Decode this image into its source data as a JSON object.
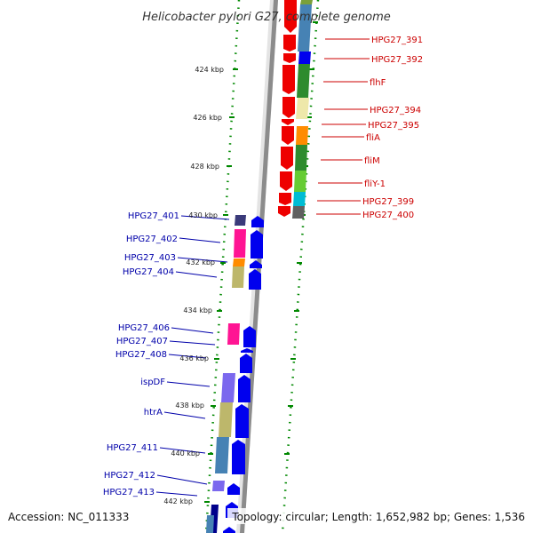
{
  "title": "Helicobacter pylori G27, complete genome",
  "accession": "Accession: NC_011333",
  "topology": "Topology: circular; Length: 1,652,982 bp; Genes: 1,536",
  "colors": {
    "left_label": "#0000aa",
    "right_label": "#cc0000",
    "forward_arrow": "#0000ee",
    "reverse_arrow": "#ee0000",
    "ruler_dots": "#008800"
  },
  "ticks": [
    "424 kbp",
    "426 kbp",
    "428 kbp",
    "430 kbp",
    "432 kbp",
    "434 kbp",
    "436 kbp",
    "438 kbp",
    "440 kbp",
    "442 kbp"
  ],
  "left_genes": [
    "HPG27_401",
    "HPG27_402",
    "HPG27_403",
    "HPG27_404",
    "HPG27_406",
    "HPG27_407",
    "HPG27_408",
    "ispDF",
    "htrA",
    "HPG27_411",
    "HPG27_412",
    "HPG27_413"
  ],
  "right_genes": [
    "HPG27_391",
    "HPG27_392",
    "flhF",
    "HPG27_394",
    "HPG27_395",
    "fliA",
    "fliM",
    "fliY-1",
    "HPG27_399",
    "HPG27_400"
  ]
}
